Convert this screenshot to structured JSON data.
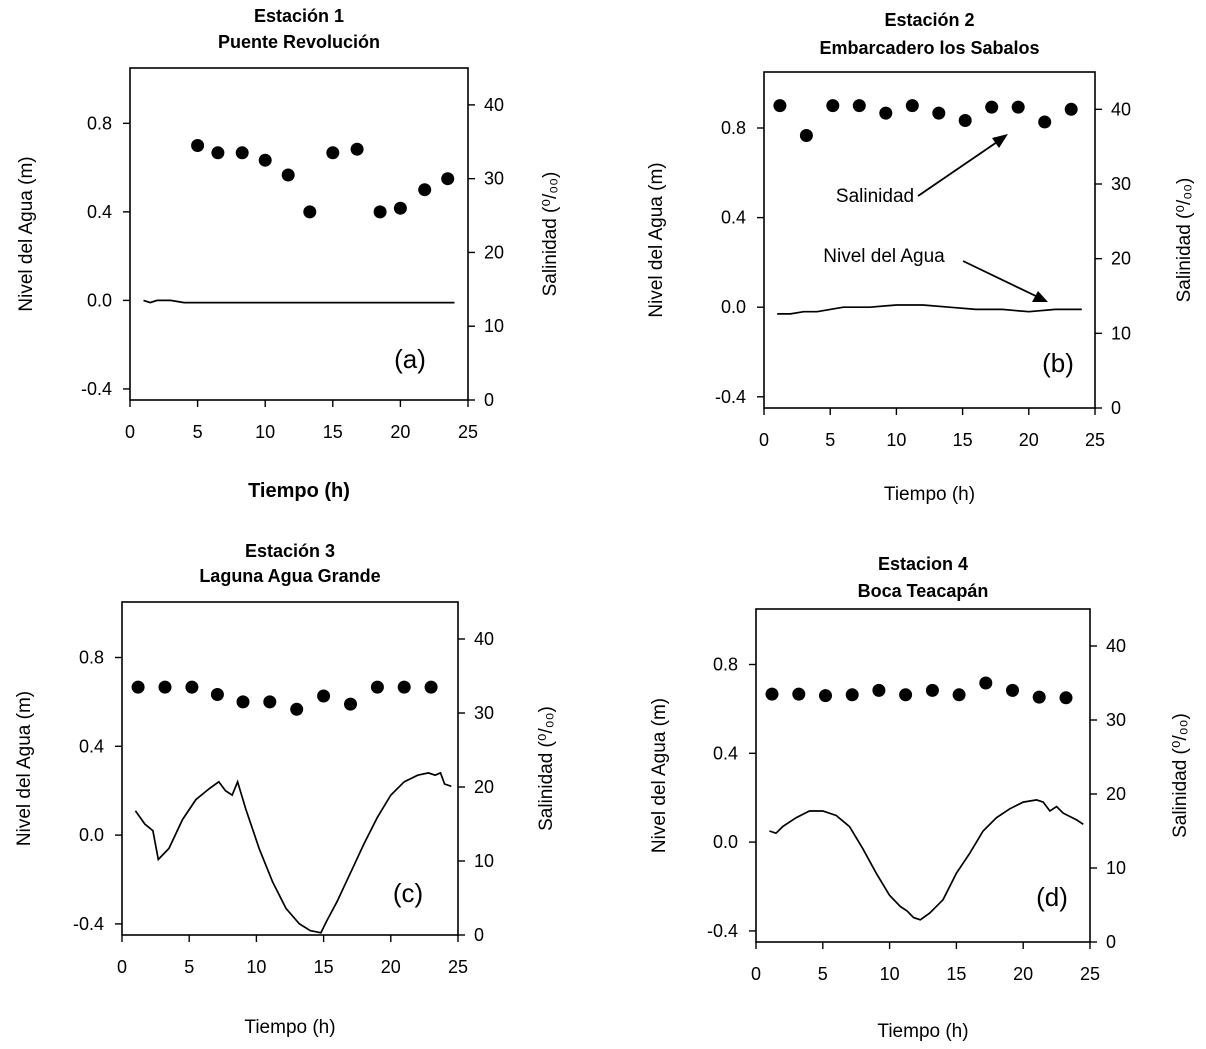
{
  "chart_data": [
    {
      "type": "scatter",
      "panel": "(a)",
      "title": [
        "Estación 1",
        "Puente Revolución"
      ],
      "xlabel": "Tiempo (h)",
      "ylabel": "Nivel del Agua (m)",
      "y2label": "Salinidad (⁰/₀₀)",
      "xlim": [
        0,
        25
      ],
      "ylim": [
        -0.45,
        1.05
      ],
      "y2lim": [
        0,
        45
      ],
      "xticks": [
        "0",
        "5",
        "10",
        "15",
        "20",
        "25"
      ],
      "yticks": [
        "-0.4",
        "0.0",
        "0.4",
        "0.8"
      ],
      "y2ticks": [
        "0",
        "10",
        "20",
        "30",
        "40"
      ],
      "series": [
        {
          "name": "Salinidad",
          "axis": "right",
          "kind": "points",
          "x": [
            5,
            6.5,
            8.3,
            10,
            11.7,
            13.3,
            15,
            16.8,
            18.5,
            20,
            21.8,
            23.5
          ],
          "y": [
            34.5,
            33.5,
            33.5,
            32.5,
            30.5,
            25.5,
            33.5,
            34,
            25.5,
            26,
            28.5,
            30
          ]
        },
        {
          "name": "Nivel del Agua",
          "axis": "left",
          "kind": "line",
          "x": [
            1,
            1.5,
            2,
            3,
            4,
            5,
            6,
            8,
            10,
            12,
            14,
            16,
            18,
            20,
            22,
            24
          ],
          "y": [
            0.0,
            -0.01,
            0.0,
            0.0,
            -0.01,
            -0.01,
            -0.01,
            -0.01,
            -0.01,
            -0.01,
            -0.01,
            -0.01,
            -0.01,
            -0.01,
            -0.01,
            -0.01
          ]
        }
      ]
    },
    {
      "type": "scatter",
      "panel": "(b)",
      "title": [
        "Estación 2",
        "Embarcadero los Sabalos"
      ],
      "xlabel": "Tiempo (h)",
      "ylabel": "Nivel del Agua (m)",
      "y2label": "Salinidad (⁰/₀₀)",
      "xlim": [
        0,
        25
      ],
      "ylim": [
        -0.45,
        1.05
      ],
      "y2lim": [
        0,
        45
      ],
      "xticks": [
        "0",
        "5",
        "10",
        "15",
        "20",
        "25"
      ],
      "yticks": [
        "-0.4",
        "0.0",
        "0.4",
        "0.8"
      ],
      "y2ticks": [
        "0",
        "10",
        "20",
        "30",
        "40"
      ],
      "annotations": [
        "Salinidad",
        "Nivel del Agua"
      ],
      "series": [
        {
          "name": "Salinidad",
          "axis": "right",
          "kind": "points",
          "x": [
            1.2,
            3.2,
            5.2,
            7.2,
            9.2,
            11.2,
            13.2,
            15.2,
            17.2,
            19.2,
            21.2,
            23.2
          ],
          "y": [
            40.5,
            36.5,
            40.5,
            40.5,
            39.5,
            40.5,
            39.5,
            38.5,
            40.3,
            40.3,
            38.3,
            40
          ]
        },
        {
          "name": "Nivel del Agua",
          "axis": "left",
          "kind": "line",
          "x": [
            1,
            2,
            3,
            4,
            5,
            6,
            8,
            10,
            12,
            14,
            16,
            18,
            20,
            22,
            24
          ],
          "y": [
            -0.03,
            -0.03,
            -0.02,
            -0.02,
            -0.01,
            0.0,
            0.0,
            0.01,
            0.01,
            0.0,
            -0.01,
            -0.01,
            -0.02,
            -0.01,
            -0.01
          ]
        }
      ]
    },
    {
      "type": "scatter",
      "panel": "(c)",
      "title": [
        "Estación 3",
        "Laguna Agua Grande"
      ],
      "xlabel": "Tiempo (h)",
      "ylabel": "Nivel del Agua (m)",
      "y2label": "Salinidad (⁰/₀₀)",
      "xlim": [
        0,
        25
      ],
      "ylim": [
        -0.45,
        1.05
      ],
      "y2lim": [
        0,
        45
      ],
      "xticks": [
        "0",
        "5",
        "10",
        "15",
        "20",
        "25"
      ],
      "yticks": [
        "-0.4",
        "0.0",
        "0.4",
        "0.8"
      ],
      "y2ticks": [
        "0",
        "10",
        "20",
        "30",
        "40"
      ],
      "series": [
        {
          "name": "Salinidad",
          "axis": "right",
          "kind": "points",
          "x": [
            1.2,
            3.2,
            5.2,
            7.1,
            9,
            11,
            13,
            15,
            17,
            19,
            21,
            23
          ],
          "y": [
            33.5,
            33.5,
            33.5,
            32.5,
            31.5,
            31.5,
            30.5,
            32.3,
            31.2,
            33.5,
            33.5,
            33.5
          ]
        },
        {
          "name": "Nivel del Agua",
          "axis": "left",
          "kind": "line",
          "x": [
            1.0,
            1.7,
            2.3,
            2.7,
            3.5,
            4.5,
            5.5,
            6.5,
            7.2,
            7.7,
            8.2,
            8.6,
            9.2,
            10.2,
            11.2,
            12.2,
            13.2,
            14.0,
            14.8,
            15.2,
            16.0,
            17.0,
            18.0,
            19.0,
            20.0,
            21.0,
            22.0,
            22.8,
            23.3,
            23.7,
            24.0,
            24.5
          ],
          "y": [
            0.11,
            0.05,
            0.02,
            -0.11,
            -0.06,
            0.07,
            0.16,
            0.21,
            0.24,
            0.2,
            0.18,
            0.24,
            0.12,
            -0.06,
            -0.21,
            -0.33,
            -0.4,
            -0.43,
            -0.44,
            -0.39,
            -0.3,
            -0.17,
            -0.04,
            0.08,
            0.18,
            0.24,
            0.27,
            0.28,
            0.27,
            0.28,
            0.23,
            0.22
          ]
        }
      ]
    },
    {
      "type": "scatter",
      "panel": "(d)",
      "title": [
        "Estacion 4",
        "Boca Teacapán"
      ],
      "xlabel": "Tiempo (h)",
      "ylabel": "Nivel del Agua (m)",
      "y2label": "Salinidad (⁰/₀₀)",
      "xlim": [
        0,
        25
      ],
      "ylim": [
        -0.45,
        1.05
      ],
      "y2lim": [
        0,
        45
      ],
      "xticks": [
        "0",
        "5",
        "10",
        "15",
        "20",
        "25"
      ],
      "yticks": [
        "-0.4",
        "0.0",
        "0.4",
        "0.8"
      ],
      "y2ticks": [
        "0",
        "10",
        "20",
        "30",
        "40"
      ],
      "series": [
        {
          "name": "Salinidad",
          "axis": "right",
          "kind": "points",
          "x": [
            1.2,
            3.2,
            5.2,
            7.2,
            9.2,
            11.2,
            13.2,
            15.2,
            17.2,
            19.2,
            21.2,
            23.2
          ],
          "y": [
            33.5,
            33.5,
            33.3,
            33.4,
            34,
            33.4,
            34,
            33.4,
            35,
            34,
            33.1,
            33
          ]
        },
        {
          "name": "Nivel del Agua",
          "axis": "left",
          "kind": "line",
          "x": [
            1.0,
            1.5,
            2.0,
            3.0,
            4.0,
            5.0,
            6.0,
            7.0,
            8.0,
            9.0,
            10.0,
            10.8,
            11.3,
            11.8,
            12.3,
            13.0,
            14.0,
            15.0,
            16.0,
            17.0,
            18.0,
            19.0,
            20.0,
            21.0,
            21.5,
            22.0,
            22.5,
            23.0,
            24.0,
            24.5
          ],
          "y": [
            0.05,
            0.04,
            0.07,
            0.11,
            0.14,
            0.14,
            0.12,
            0.07,
            -0.03,
            -0.14,
            -0.24,
            -0.29,
            -0.31,
            -0.34,
            -0.35,
            -0.32,
            -0.26,
            -0.14,
            -0.05,
            0.05,
            0.11,
            0.15,
            0.18,
            0.19,
            0.18,
            0.14,
            0.16,
            0.13,
            0.1,
            0.08
          ]
        }
      ]
    }
  ]
}
